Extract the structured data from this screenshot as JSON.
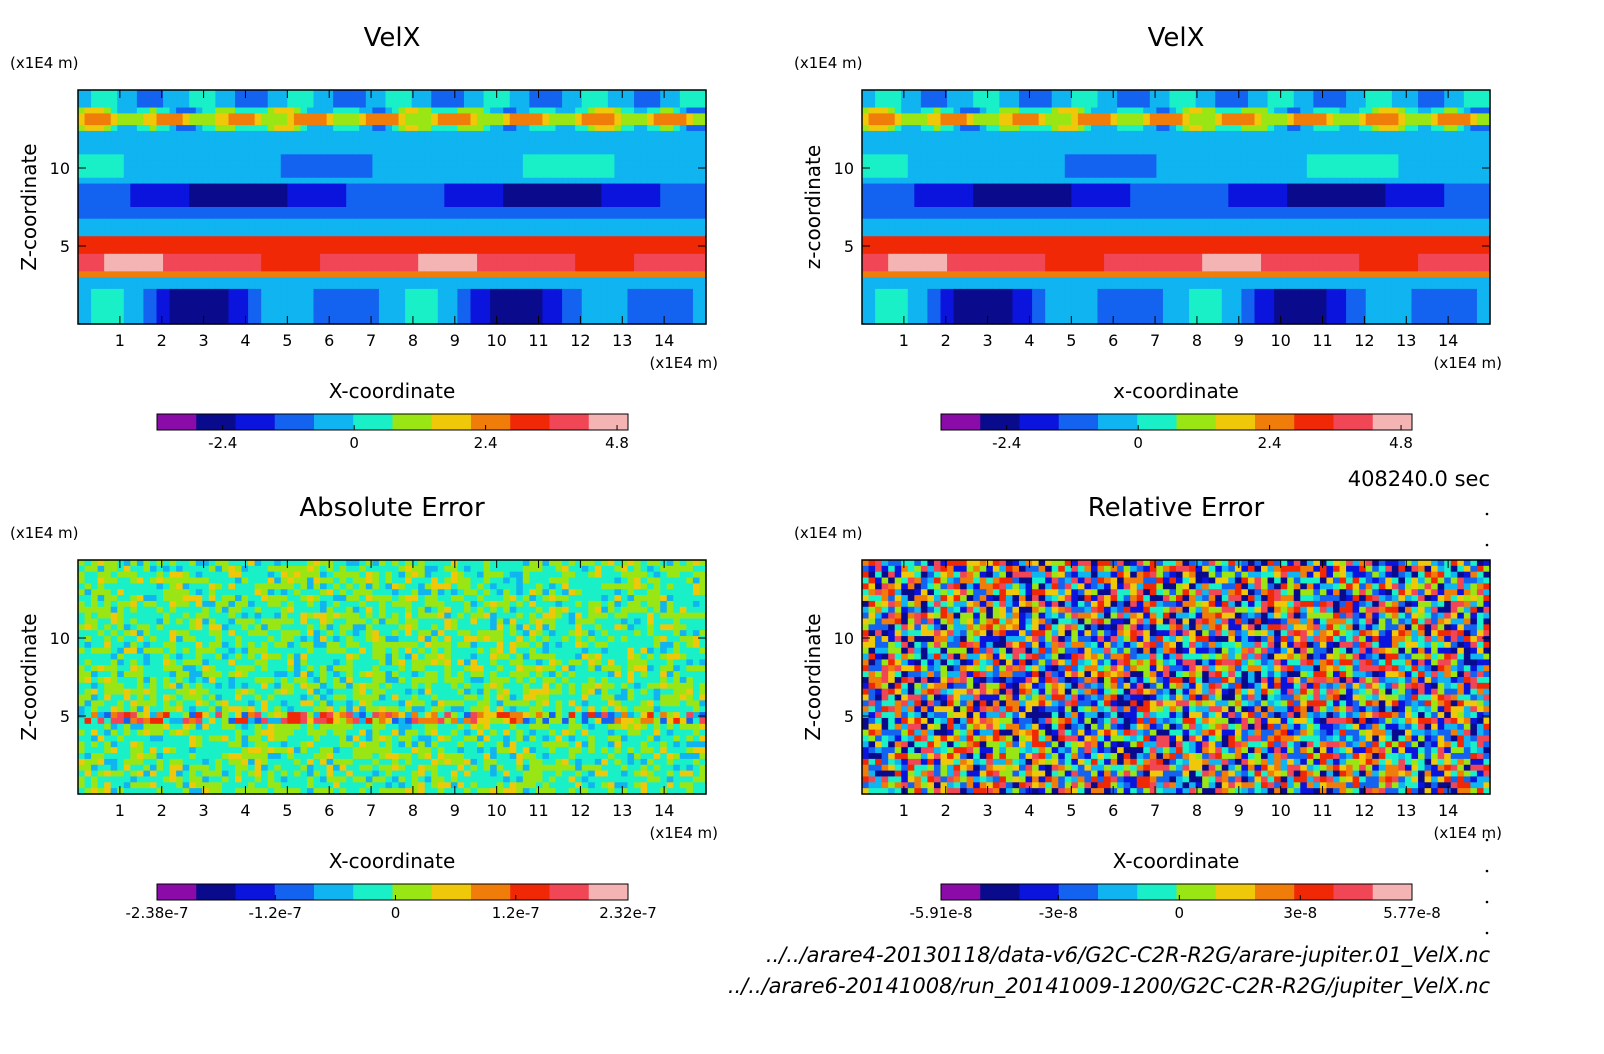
{
  "chart_data": [
    {
      "type": "heatmap",
      "title": "VelX",
      "xlabel": "X-coordinate",
      "ylabel": "Z-coordinate",
      "x_unit": "(x1E4 m)",
      "y_unit": "(x1E4 m)",
      "xlim": [
        0,
        15
      ],
      "ylim": [
        0,
        15
      ],
      "x_ticks": [
        "1",
        "2",
        "3",
        "4",
        "5",
        "6",
        "7",
        "8",
        "9",
        "10",
        "11",
        "12",
        "13",
        "14"
      ],
      "y_ticks": [
        "5",
        "10"
      ],
      "pattern": "bands",
      "colorbar": {
        "min": -3.6,
        "max": 5.0,
        "tick_labels": [
          "-2.4",
          "0",
          "2.4",
          "4.8"
        ],
        "tick_values": [
          -2.4,
          0,
          2.4,
          4.8
        ]
      }
    },
    {
      "type": "heatmap",
      "title": "VelX",
      "xlabel": "x-coordinate",
      "ylabel": "z-coordinate",
      "x_unit": "(x1E4 m)",
      "y_unit": "(x1E4 m)",
      "xlim": [
        0,
        15
      ],
      "ylim": [
        0,
        15
      ],
      "x_ticks": [
        "1",
        "2",
        "3",
        "4",
        "5",
        "6",
        "7",
        "8",
        "9",
        "10",
        "11",
        "12",
        "13",
        "14"
      ],
      "y_ticks": [
        "5",
        "10"
      ],
      "pattern": "bands",
      "colorbar": {
        "min": -3.6,
        "max": 5.0,
        "tick_labels": [
          "-2.4",
          "0",
          "2.4",
          "4.8"
        ],
        "tick_values": [
          -2.4,
          0,
          2.4,
          4.8
        ]
      }
    },
    {
      "type": "heatmap",
      "title": "Absolute Error",
      "xlabel": "X-coordinate",
      "ylabel": "Z-coordinate",
      "x_unit": "(x1E4 m)",
      "y_unit": "(x1E4 m)",
      "xlim": [
        0,
        15
      ],
      "ylim": [
        0,
        15
      ],
      "x_ticks": [
        "1",
        "2",
        "3",
        "4",
        "5",
        "6",
        "7",
        "8",
        "9",
        "10",
        "11",
        "12",
        "13",
        "14"
      ],
      "y_ticks": [
        "5",
        "10"
      ],
      "pattern": "noise-low",
      "colorbar": {
        "min": -2.38e-07,
        "max": 2.32e-07,
        "tick_labels": [
          "-2.38e-7",
          "-1.2e-7",
          "0",
          "1.2e-7",
          "2.32e-7"
        ],
        "tick_values": [
          -2.38e-07,
          -1.2e-07,
          0,
          1.2e-07,
          2.32e-07
        ]
      }
    },
    {
      "type": "heatmap",
      "title": "Relative Error",
      "xlabel": "X-coordinate",
      "ylabel": "Z-coordinate",
      "x_unit": "(x1E4 m)",
      "y_unit": "(x1E4 m)",
      "xlim": [
        0,
        15
      ],
      "ylim": [
        0,
        15
      ],
      "x_ticks": [
        "1",
        "2",
        "3",
        "4",
        "5",
        "6",
        "7",
        "8",
        "9",
        "10",
        "11",
        "12",
        "13",
        "14"
      ],
      "y_ticks": [
        "5",
        "10"
      ],
      "pattern": "noise-high",
      "colorbar": {
        "min": -5.91e-08,
        "max": 5.77e-08,
        "tick_labels": [
          "-5.91e-8",
          "-3e-8",
          "0",
          "3e-8",
          "5.77e-8"
        ],
        "tick_values": [
          -5.91e-08,
          -3e-08,
          0,
          3e-08,
          5.77e-08
        ]
      }
    }
  ],
  "colormap": [
    "#8a0ba8",
    "#0a0a8c",
    "#0a14dc",
    "#1462f0",
    "#0fb4f0",
    "#19f0c8",
    "#9ae614",
    "#f0c80a",
    "#f07d0a",
    "#f02805",
    "#f04655",
    "#f5b4b4"
  ],
  "time_label": "408240.0 sec",
  "footer": {
    "file1": "../../arare4-20130118/data-v6/G2C-C2R-R2G/arare-jupiter.01_VelX.nc",
    "file2": "../../arare6-20141008/run_20141009-1200/G2C-C2R-R2G/jupiter_VelX.nc"
  }
}
